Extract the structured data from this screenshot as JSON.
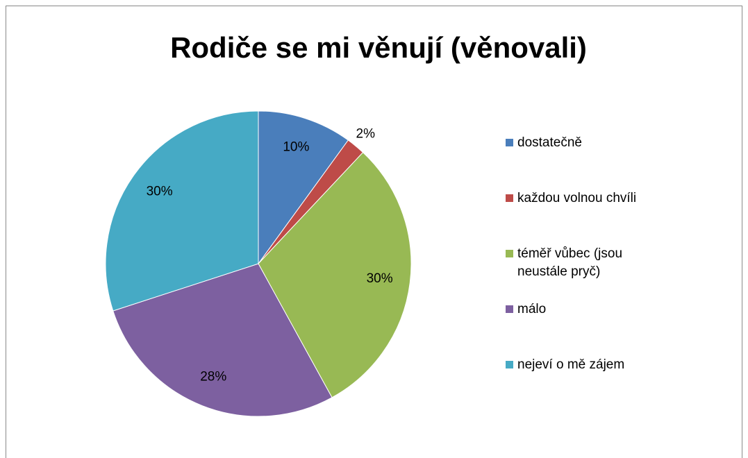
{
  "chart_data": {
    "type": "pie",
    "title": "Rodiče se mi věnují (věnovali)",
    "categories": [
      "dostatečně",
      "každou volnou chvíli",
      "téměř vůbec (jsou neustále pryč)",
      "málo",
      "nejeví o mě zájem"
    ],
    "values": [
      10,
      2,
      30,
      28,
      30
    ],
    "value_labels": [
      "10%",
      "2%",
      "30%",
      "28%",
      "30%"
    ],
    "colors": [
      "#4a7ebb",
      "#be4b48",
      "#98b954",
      "#7d60a0",
      "#46aac5"
    ],
    "legend": "right"
  }
}
